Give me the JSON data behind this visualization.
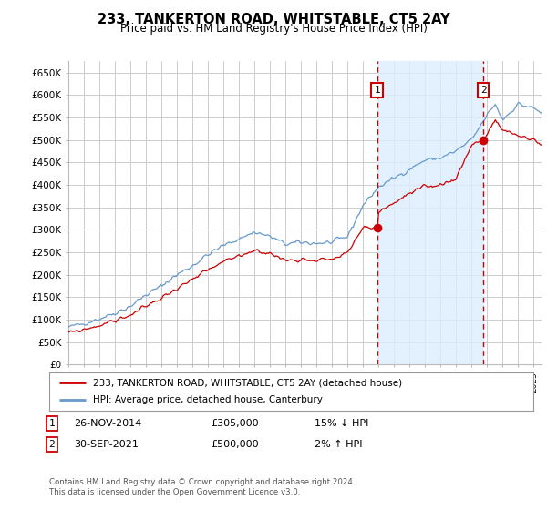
{
  "title": "233, TANKERTON ROAD, WHITSTABLE, CT5 2AY",
  "subtitle": "Price paid vs. HM Land Registry's House Price Index (HPI)",
  "ylabel_ticks": [
    "£0",
    "£50K",
    "£100K",
    "£150K",
    "£200K",
    "£250K",
    "£300K",
    "£350K",
    "£400K",
    "£450K",
    "£500K",
    "£550K",
    "£600K",
    "£650K"
  ],
  "ytick_vals": [
    0,
    50000,
    100000,
    150000,
    200000,
    250000,
    300000,
    350000,
    400000,
    450000,
    500000,
    550000,
    600000,
    650000
  ],
  "ylim": [
    0,
    675000
  ],
  "xlim_start": 1995.0,
  "xlim_end": 2025.5,
  "legend_property": "233, TANKERTON ROAD, WHITSTABLE, CT5 2AY (detached house)",
  "legend_hpi": "HPI: Average price, detached house, Canterbury",
  "sale1_label": "1",
  "sale1_date": "26-NOV-2014",
  "sale1_price": "£305,000",
  "sale1_hpi": "15% ↓ HPI",
  "sale1_year": 2014.9,
  "sale1_value": 305000,
  "sale2_label": "2",
  "sale2_date": "30-SEP-2021",
  "sale2_price": "£500,000",
  "sale2_hpi": "2% ↑ HPI",
  "sale2_year": 2021.75,
  "sale2_value": 500000,
  "red_color": "#cc0000",
  "blue_color": "#6699cc",
  "fill_color": "#ddeeff",
  "footer": "Contains HM Land Registry data © Crown copyright and database right 2024.\nThis data is licensed under the Open Government Licence v3.0.",
  "background_color": "#ffffff",
  "grid_color": "#cccccc",
  "hpi_key_years": [
    1995,
    1996,
    1997,
    1998,
    1999,
    2000,
    2001,
    2002,
    2003,
    2004,
    2005,
    2006,
    2007,
    2008,
    2009,
    2010,
    2011,
    2012,
    2013,
    2014,
    2015,
    2016,
    2017,
    2018,
    2019,
    2020,
    2021,
    2022,
    2022.5,
    2023,
    2024,
    2025,
    2025.5
  ],
  "hpi_key_vals": [
    83000,
    92000,
    102000,
    115000,
    130000,
    155000,
    175000,
    200000,
    220000,
    245000,
    265000,
    280000,
    295000,
    285000,
    268000,
    272000,
    270000,
    272000,
    285000,
    355000,
    395000,
    415000,
    435000,
    455000,
    460000,
    475000,
    500000,
    555000,
    580000,
    545000,
    580000,
    570000,
    560000
  ],
  "prop_key_years": [
    1995,
    1996,
    1997,
    1998,
    1999,
    2000,
    2001,
    2002,
    2003,
    2004,
    2005,
    2006,
    2007,
    2008,
    2009,
    2010,
    2011,
    2012,
    2013,
    2014,
    2014.9,
    2015,
    2016,
    2017,
    2018,
    2019,
    2020,
    2021,
    2021.75,
    2022,
    2022.5,
    2023,
    2024,
    2025,
    2025.5
  ],
  "prop_key_vals": [
    70000,
    78000,
    87000,
    98000,
    110000,
    130000,
    148000,
    170000,
    188000,
    210000,
    228000,
    242000,
    255000,
    247000,
    232000,
    235000,
    233000,
    235000,
    248000,
    305000,
    305000,
    340000,
    360000,
    380000,
    395000,
    400000,
    415000,
    490000,
    500000,
    510000,
    545000,
    520000,
    510000,
    500000,
    490000
  ]
}
